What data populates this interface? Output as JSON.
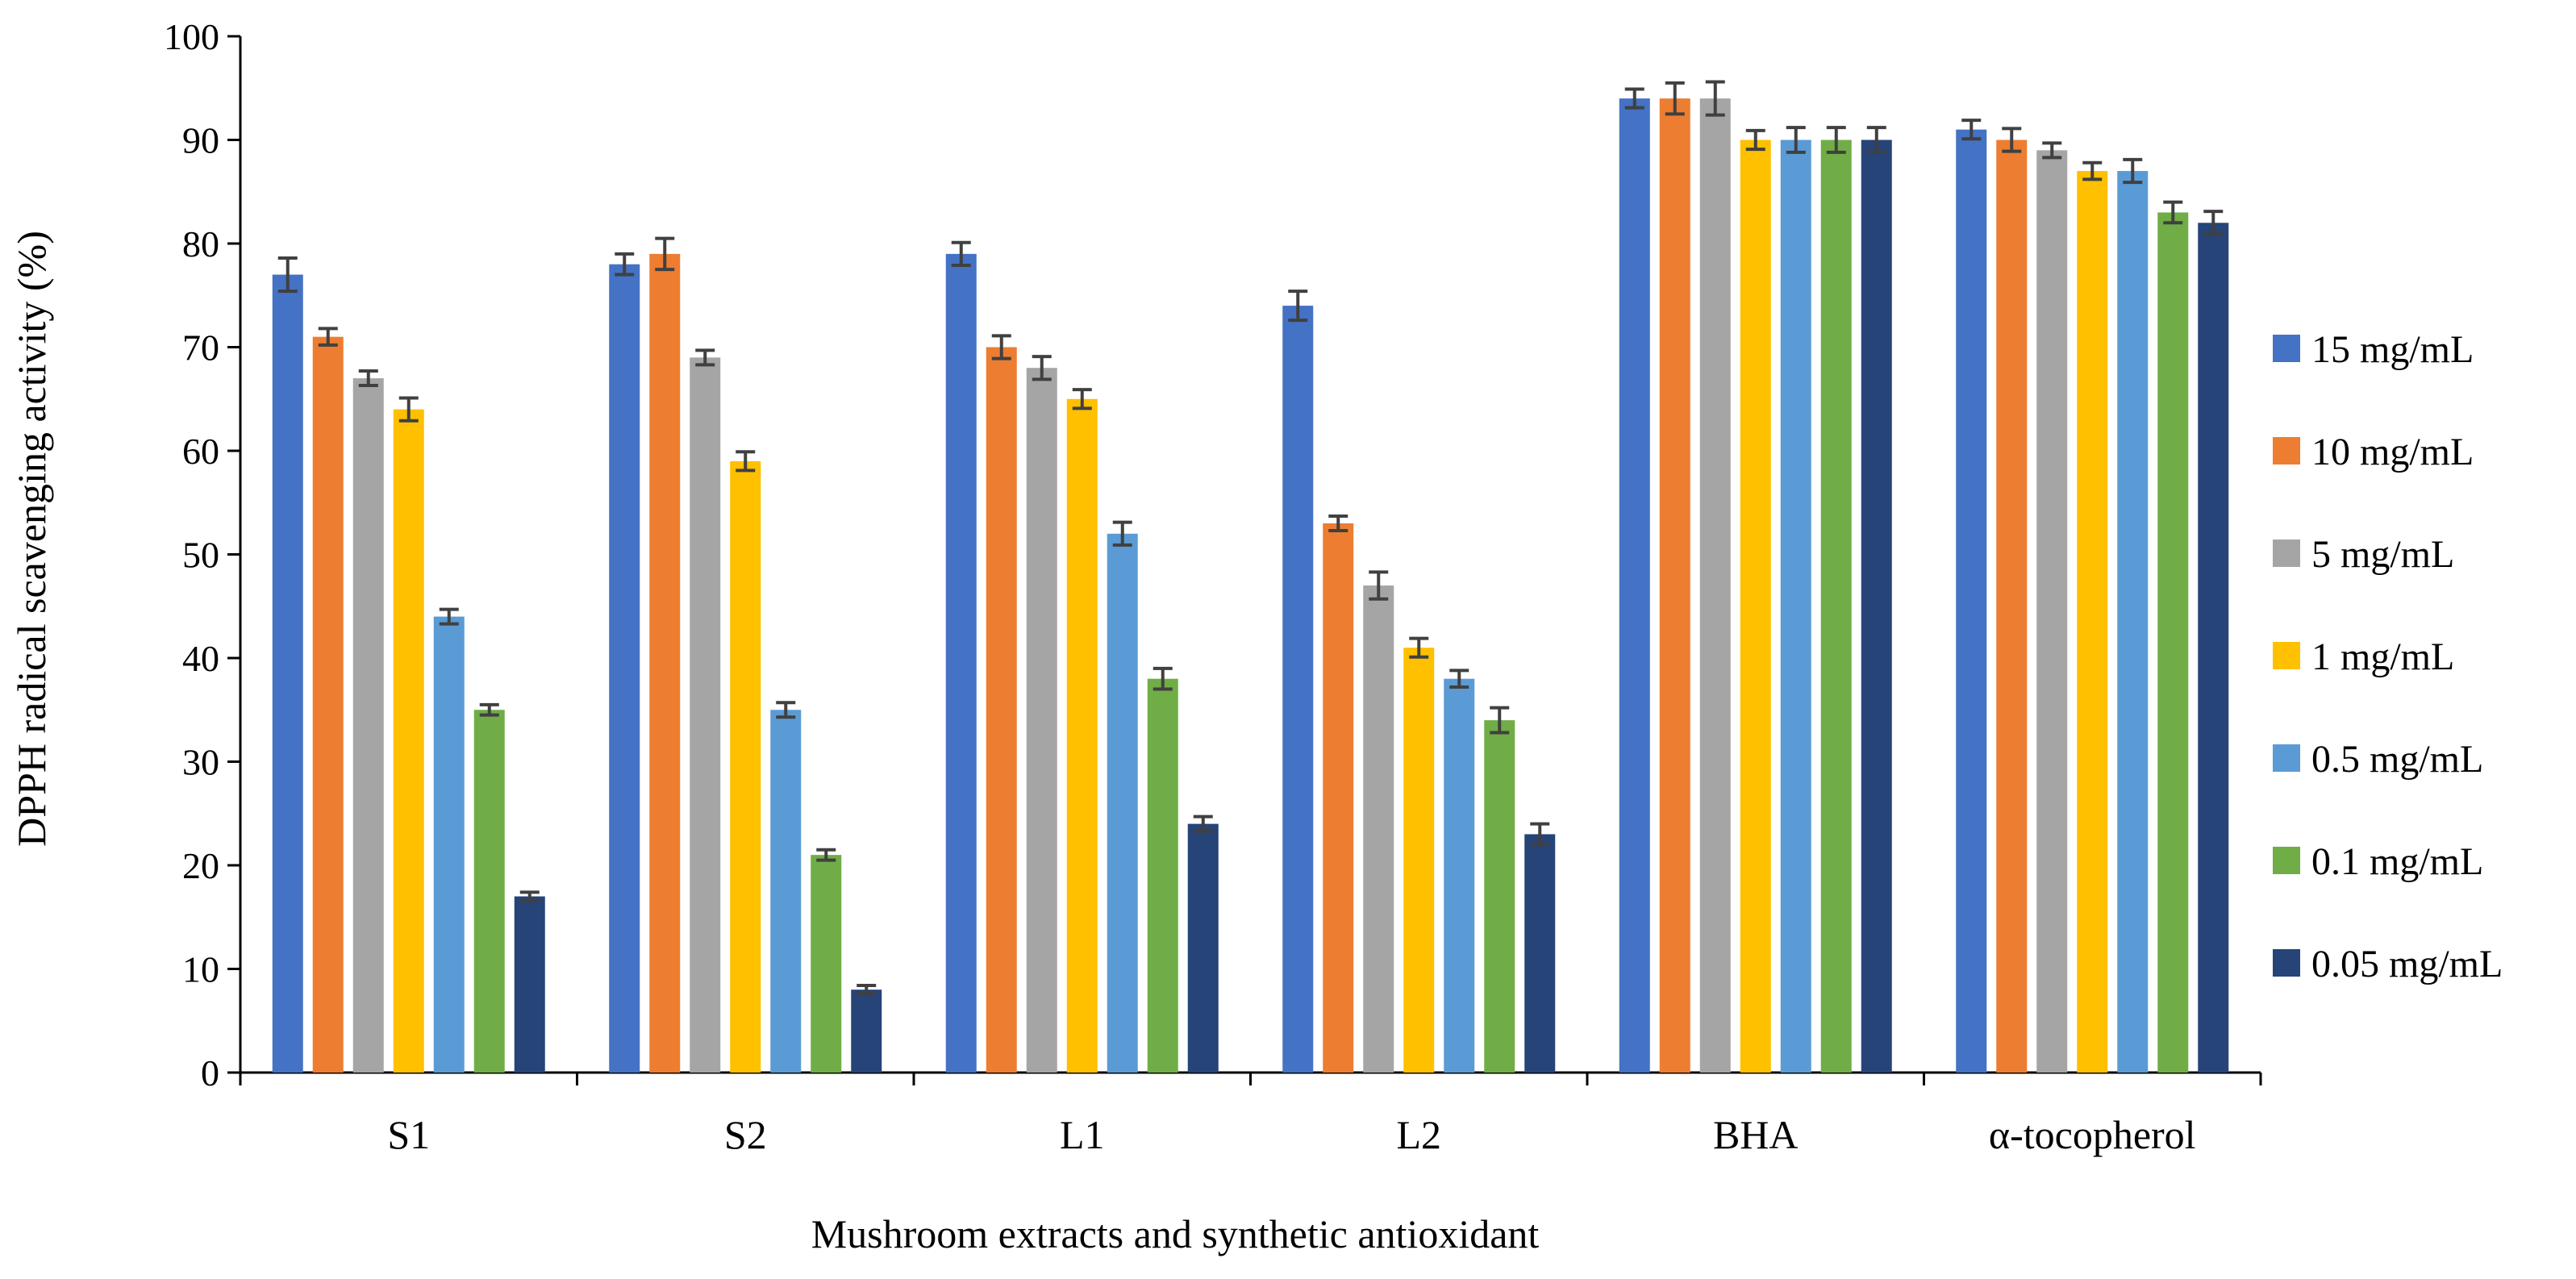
{
  "chart_data": {
    "type": "bar",
    "title": "",
    "xlabel": "Mushroom extracts and synthetic antioxidant",
    "ylabel": "DPPH radical scavenging activity  (%)",
    "ylim": [
      0,
      100
    ],
    "yticks": [
      "0",
      "10",
      "20",
      "30",
      "40",
      "50",
      "60",
      "70",
      "80",
      "90",
      "100"
    ],
    "legend_position": "right",
    "grid": false,
    "categories": [
      "S1",
      "S2",
      "L1",
      "L2",
      "BHA",
      "α-tocopherol"
    ],
    "series": [
      {
        "name": "15 mg/mL",
        "color": "#4472C4",
        "values": [
          77,
          78,
          79,
          74,
          94,
          91
        ],
        "errors": [
          1.6,
          1.0,
          1.1,
          1.4,
          0.9,
          0.9
        ]
      },
      {
        "name": "10 mg/mL",
        "color": "#ED7D31",
        "values": [
          71,
          79,
          70,
          53,
          94,
          90
        ],
        "errors": [
          0.8,
          1.5,
          1.1,
          0.7,
          1.5,
          1.1
        ]
      },
      {
        "name": "5 mg/mL",
        "color": "#A5A5A5",
        "values": [
          67,
          69,
          68,
          47,
          94,
          89
        ],
        "errors": [
          0.7,
          0.7,
          1.1,
          1.3,
          1.6,
          0.7
        ]
      },
      {
        "name": "1 mg/mL",
        "color": "#FFC000",
        "values": [
          64,
          59,
          65,
          41,
          90,
          87
        ],
        "errors": [
          1.1,
          0.9,
          0.9,
          0.9,
          0.9,
          0.8
        ]
      },
      {
        "name": "0.5 mg/mL",
        "color": "#5B9BD5",
        "values": [
          44,
          35,
          52,
          38,
          90,
          87
        ],
        "errors": [
          0.7,
          0.7,
          1.1,
          0.8,
          1.2,
          1.1
        ]
      },
      {
        "name": "0.1 mg/mL",
        "color": "#70AD47",
        "values": [
          35,
          21,
          38,
          34,
          90,
          83
        ],
        "errors": [
          0.5,
          0.5,
          1.0,
          1.2,
          1.2,
          1.0
        ]
      },
      {
        "name": "0.05 mg/mL",
        "color": "#264478",
        "values": [
          17,
          8,
          24,
          23,
          90,
          82
        ],
        "errors": [
          0.4,
          0.4,
          0.7,
          1.0,
          1.2,
          1.1
        ]
      }
    ]
  }
}
